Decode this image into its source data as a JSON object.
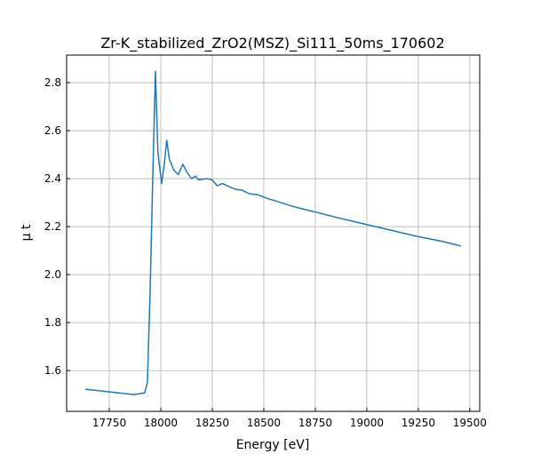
{
  "chart_data": {
    "type": "line",
    "title": "Zr-K_stabilized_ZrO2(MSZ)_Si111_50ms_170602",
    "xlabel": "Energy [eV]",
    "ylabel": "μ t",
    "x": [
      17634,
      17870,
      17922,
      17935,
      17948,
      17961,
      17974,
      17986,
      18004,
      18017,
      18029,
      18042,
      18064,
      18085,
      18107,
      18128,
      18150,
      18167,
      18184,
      18223,
      18249,
      18274,
      18300,
      18335,
      18365,
      18395,
      18429,
      18472,
      18515,
      18558,
      18623,
      18687,
      18773,
      18859,
      18988,
      19117,
      19246,
      19375,
      19457
    ],
    "values": [
      1.522,
      1.5,
      1.507,
      1.55,
      1.92,
      2.4,
      2.848,
      2.51,
      2.38,
      2.46,
      2.56,
      2.48,
      2.435,
      2.417,
      2.46,
      2.425,
      2.4,
      2.41,
      2.395,
      2.4,
      2.395,
      2.37,
      2.38,
      2.365,
      2.355,
      2.352,
      2.337,
      2.333,
      2.318,
      2.307,
      2.289,
      2.274,
      2.256,
      2.237,
      2.211,
      2.185,
      2.159,
      2.137,
      2.119
    ],
    "color": "#1f77b4",
    "xlim": [
      17543,
      19548
    ],
    "xticks": [
      17750,
      18000,
      18250,
      18500,
      18750,
      19000,
      19250,
      19500
    ],
    "ylim": [
      1.43,
      2.915
    ],
    "yticks": [
      1.6,
      1.8,
      {
        "value": 2,
        "label": "2.0"
      },
      2.2,
      2.4,
      2.6,
      2.8
    ],
    "grid": true
  }
}
